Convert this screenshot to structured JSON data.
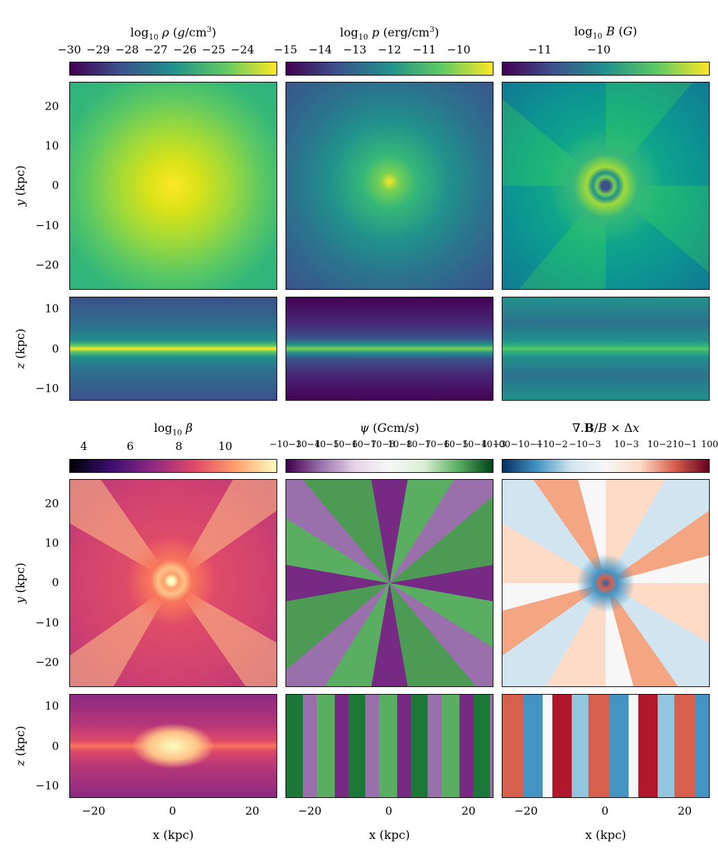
{
  "rows": [
    {
      "colorbars": [
        {
          "title": "log10 ρ (g/cm3)",
          "ticks": [
            "−30",
            "−29",
            "−28",
            "−27",
            "−26",
            "−25",
            "−24"
          ],
          "cmap": "viridis"
        },
        {
          "title": "log10 p (erg/cm3)",
          "ticks": [
            "−15",
            "−14",
            "−13",
            "−12",
            "−11",
            "−10"
          ],
          "cmap": "viridis"
        },
        {
          "title": "log10 B (G)",
          "ticks": [
            "−11",
            "−10"
          ],
          "cmap": "viridis"
        }
      ],
      "face_ylabel": "y (kpc)",
      "edge_ylabel": "z (kpc)",
      "face_yticks": [
        "20",
        "10",
        "0",
        "−10",
        "−20"
      ],
      "edge_yticks": [
        "10",
        "0",
        "−10"
      ]
    },
    {
      "colorbars": [
        {
          "title": "log10 β",
          "ticks": [
            "4",
            "6",
            "8",
            "10"
          ],
          "cmap": "magma"
        },
        {
          "title": "ψ (Gcm/s)",
          "ticks": [
            "−10−3",
            "−10−4",
            "−10−5",
            "−10−6",
            "−10−7",
            "−10−8",
            "10−8",
            "10−7",
            "10−6",
            "10−5",
            "10−4",
            "10−3"
          ],
          "cmap": "PRGn"
        },
        {
          "title": "∇.B/B × Δx",
          "ticks": [
            "100",
            "−10−1",
            "−10−2",
            "−10−3",
            "10−3",
            "10−2",
            "10−1",
            "100"
          ],
          "cmap": "RdBu_r"
        }
      ],
      "face_ylabel": "y (kpc)",
      "edge_ylabel": "z (kpc)",
      "face_yticks": [
        "20",
        "10",
        "0",
        "−10",
        "−20"
      ],
      "edge_yticks": [
        "10",
        "0",
        "−10"
      ]
    }
  ],
  "xticks": [
    "−20",
    "0",
    "20"
  ],
  "xlabel": "x (kpc)",
  "colors": {
    "viridis": [
      "#440154",
      "#3b528b",
      "#21918c",
      "#5ec962",
      "#fde725"
    ],
    "magma": [
      "#000004",
      "#51127c",
      "#b73779",
      "#fc8961",
      "#fcfdbf"
    ],
    "PRGn": [
      "#40004b",
      "#9970ab",
      "#f7f7f7",
      "#5aae61",
      "#00441b"
    ],
    "RdBu_r": [
      "#053061",
      "#4393c3",
      "#f7f7f7",
      "#d6604d",
      "#67001f"
    ]
  }
}
